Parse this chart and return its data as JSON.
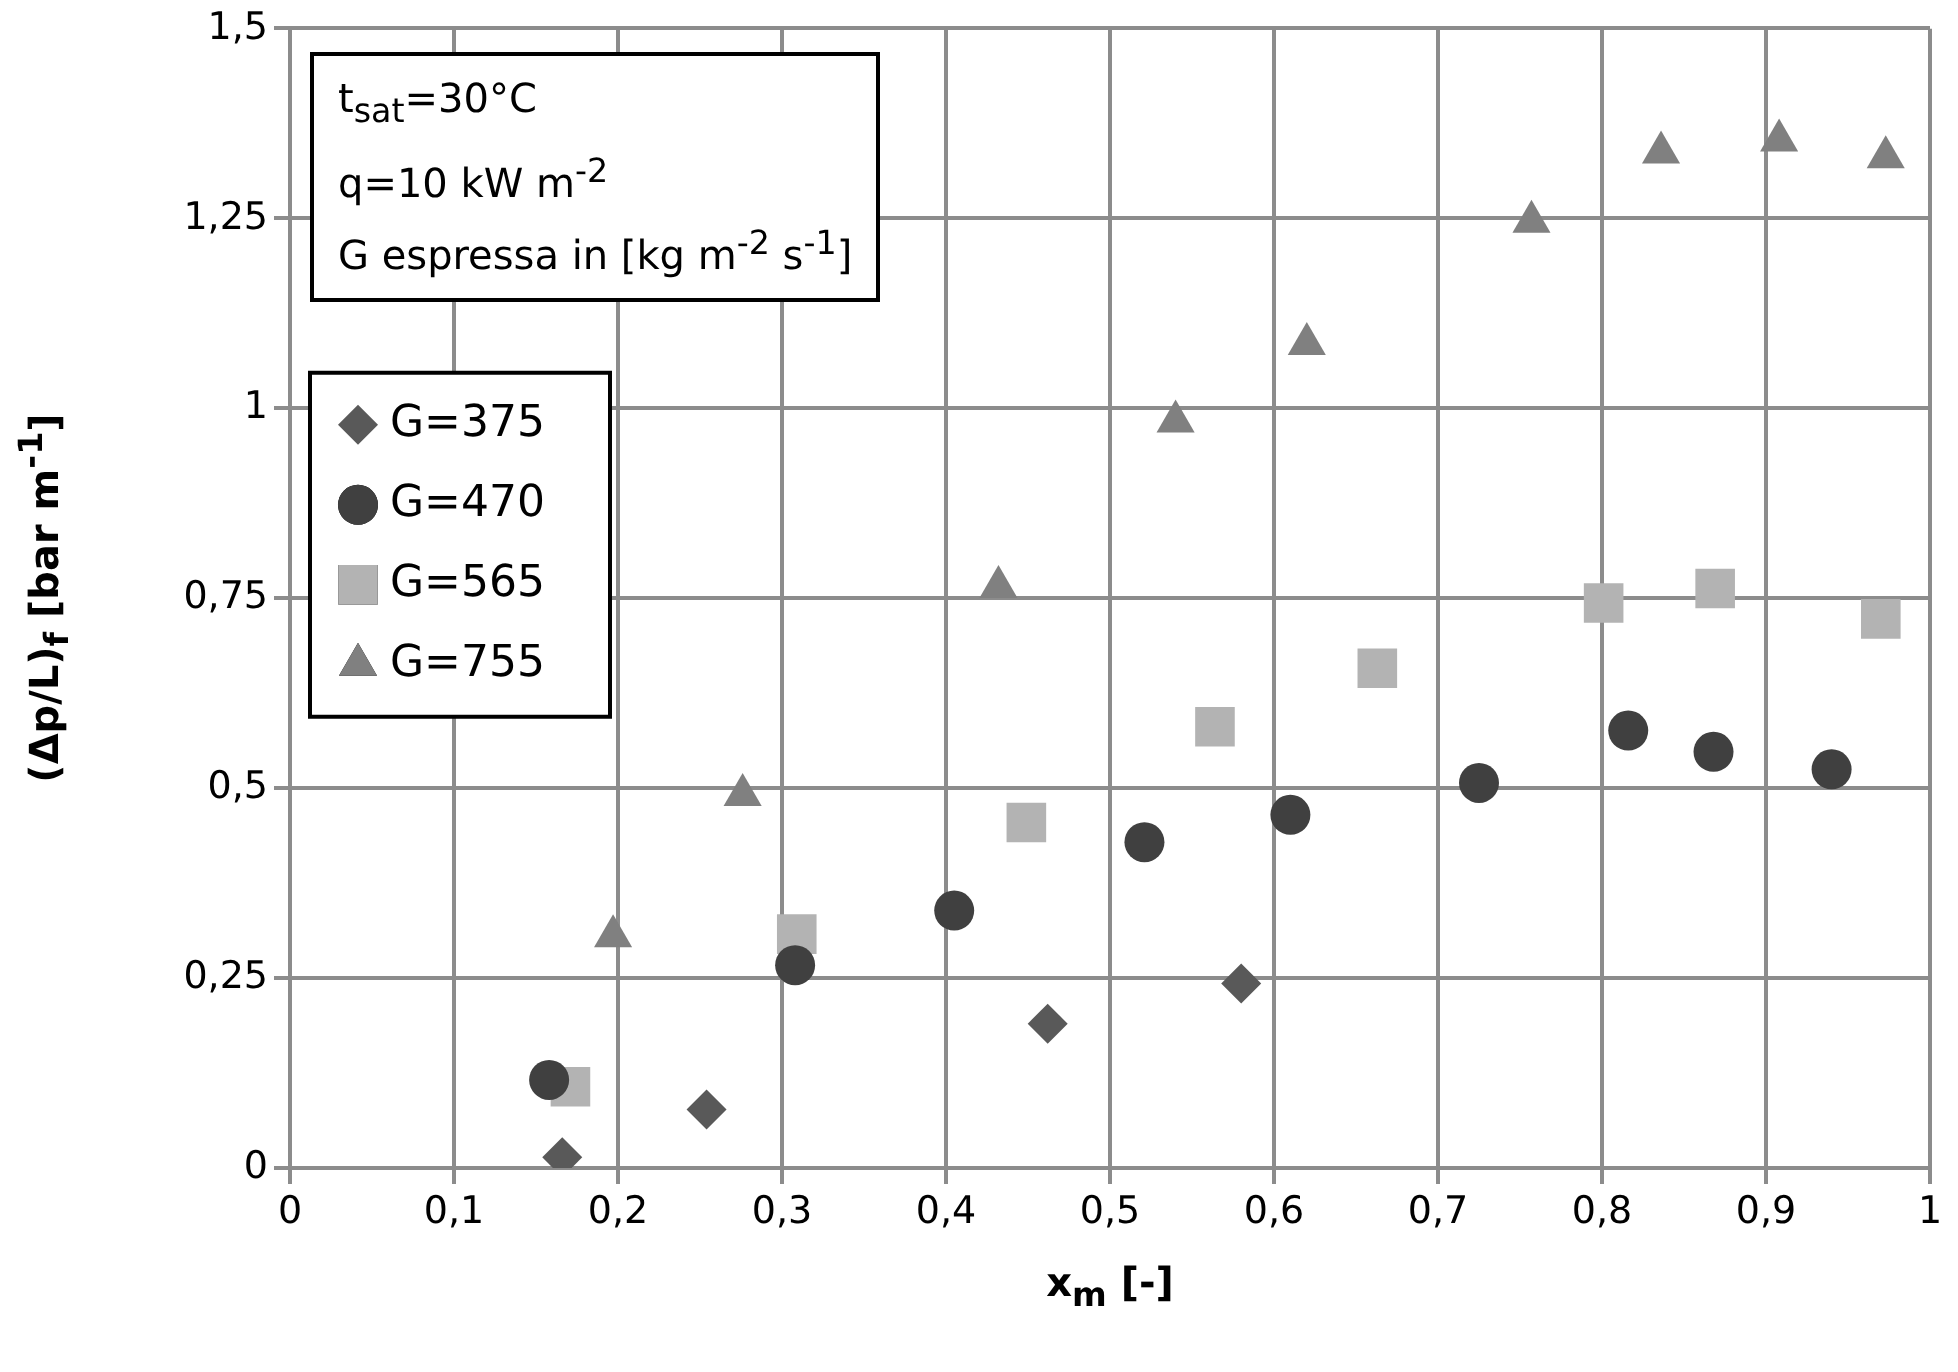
{
  "chart_data": {
    "type": "scatter",
    "xlabel": "x$_{m}$ [-]",
    "ylabel": "(Δp/L)$_{f}$ [bar m$^{-1}$]",
    "annotations": [
      "t$_{sat}$=30°C",
      "q=10 kW m$^{-2}$",
      "G espressa in [kg m$^{-2}$ s$^{-1}$]"
    ],
    "xlim": [
      0,
      1
    ],
    "xticks": [
      0,
      {
        "value": 0.1,
        "label": "0,1"
      },
      {
        "value": 0.2,
        "label": "0,2"
      },
      {
        "value": 0.3,
        "label": "0,3"
      },
      {
        "value": 0.4,
        "label": "0,4"
      },
      {
        "value": 0.5,
        "label": "0,5"
      },
      {
        "value": 0.6,
        "label": "0,6"
      },
      {
        "value": 0.7,
        "label": "0,7"
      },
      {
        "value": 0.8,
        "label": "0,8"
      },
      {
        "value": 0.9,
        "label": "0,9"
      },
      1
    ],
    "ylim": [
      0,
      1.5
    ],
    "yticks": [
      0,
      {
        "value": 0.25,
        "label": "0,25"
      },
      {
        "value": 0.5,
        "label": "0,5"
      },
      {
        "value": 0.75,
        "label": "0,75"
      },
      1,
      {
        "value": 1.25,
        "label": "1,25"
      },
      {
        "value": 1.5,
        "label": "1,5"
      }
    ],
    "grid": true,
    "legend": "top left",
    "series": [
      {
        "name": "G=375",
        "color": "#595959",
        "marker": "diamond",
        "x": [
          0.166,
          0.254,
          0.462,
          0.58
        ],
        "values": [
          0.014,
          0.077,
          0.19,
          0.243
        ]
      },
      {
        "name": "G=470",
        "color": "#404040",
        "marker": "circle",
        "x": [
          0.158,
          0.308,
          0.405,
          0.521,
          0.61,
          0.725,
          0.816,
          0.868,
          0.94
        ],
        "values": [
          0.116,
          0.267,
          0.339,
          0.429,
          0.465,
          0.507,
          0.576,
          0.548,
          0.525
        ]
      },
      {
        "name": "G=565",
        "color": "#b3b3b3",
        "marker": "square",
        "x": [
          0.171,
          0.309,
          0.449,
          0.564,
          0.663,
          0.801,
          0.869,
          0.97
        ],
        "values": [
          0.107,
          0.308,
          0.455,
          0.581,
          0.658,
          0.744,
          0.763,
          0.723
        ]
      },
      {
        "name": "G=755",
        "color": "#808080",
        "marker": "triangle",
        "x": [
          0.197,
          0.276,
          0.432,
          0.54,
          0.62,
          0.757,
          0.836,
          0.908,
          0.973
        ],
        "values": [
          0.305,
          0.491,
          0.765,
          0.983,
          1.085,
          1.246,
          1.337,
          1.353,
          1.331
        ]
      }
    ]
  }
}
